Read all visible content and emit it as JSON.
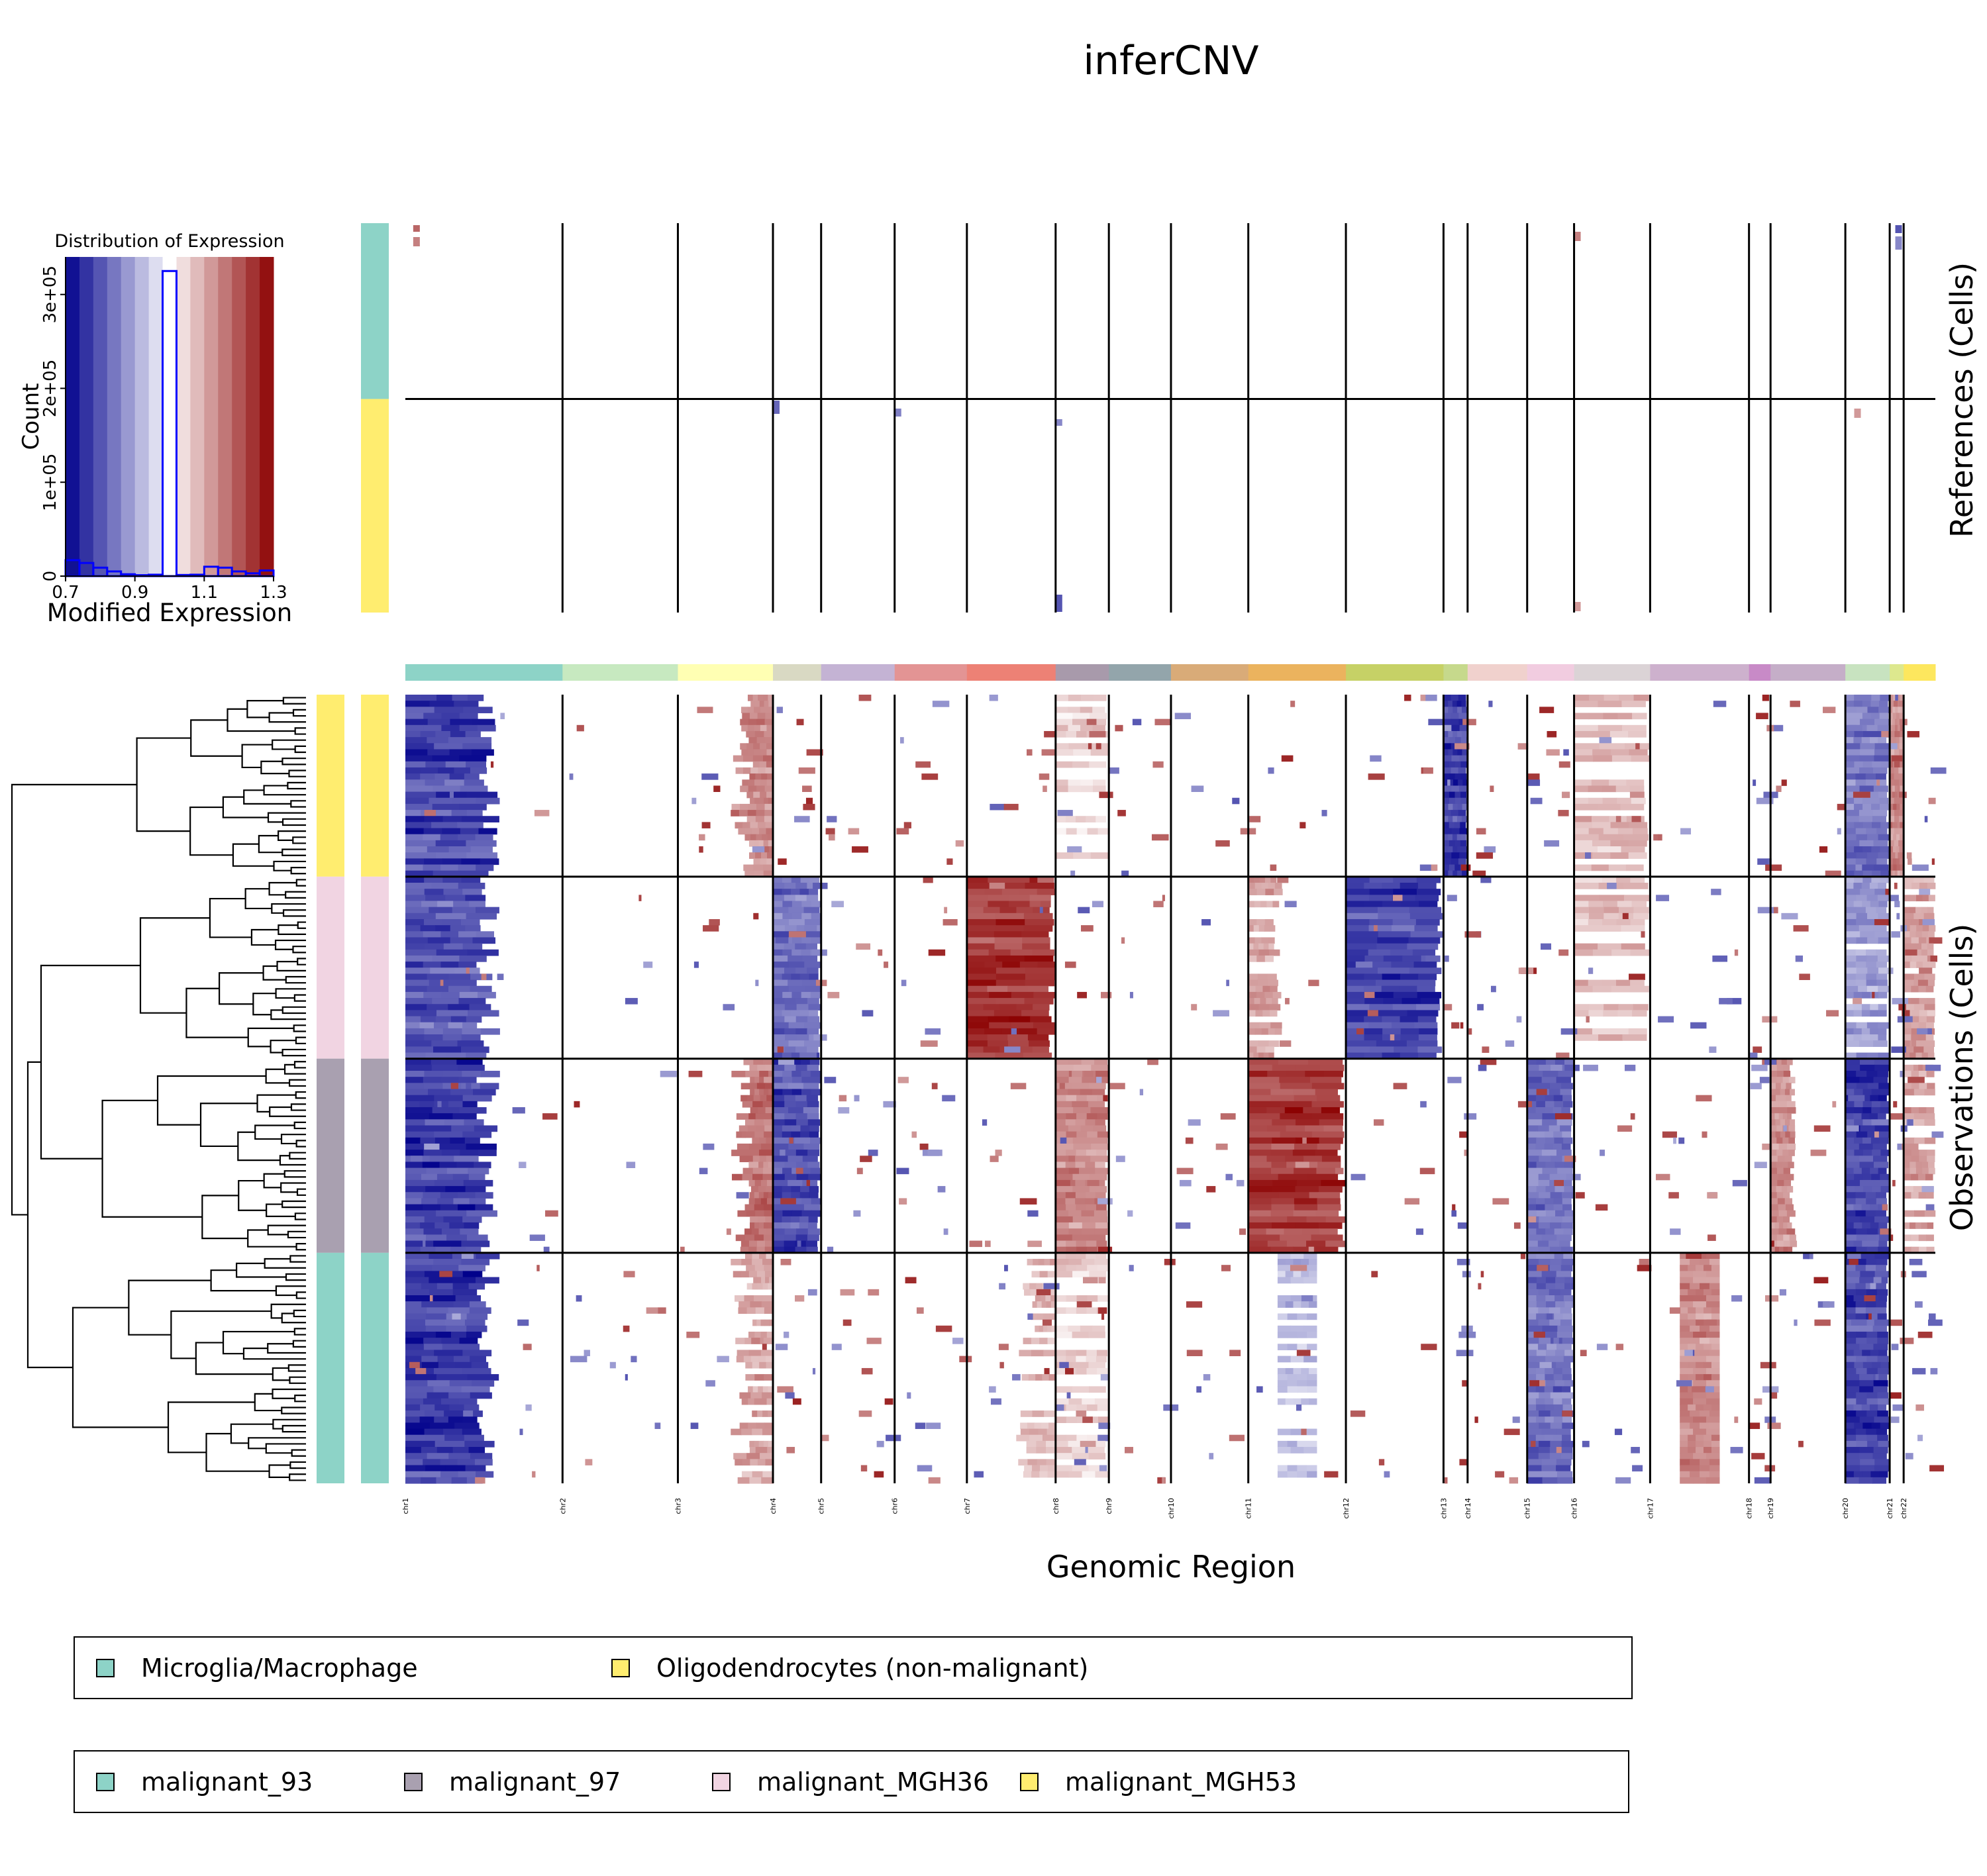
{
  "title": "inferCNV",
  "colors": {
    "dark_blue": "#00008b",
    "dark_red": "#8b0000",
    "line": "#000000",
    "hist_outline": "#0000ff"
  },
  "histogram": {
    "title": "Distribution of Expression",
    "xlabel": "Modified Expression",
    "ylabel": "Count",
    "xticks": [
      "0.7",
      "0.9",
      "1.1",
      "1.3"
    ],
    "yticks": [
      "0",
      "1e+05",
      "2e+05",
      "3e+05"
    ],
    "xlim": [
      0.7,
      1.3
    ],
    "ylim": [
      0,
      340000
    ],
    "color_steps": 15
  },
  "heatmap": {
    "xlabel": "Genomic Region",
    "references_label": "References (Cells)",
    "observations_label": "Observations (Cells)"
  },
  "chart_data": {
    "type": "heatmap",
    "title": "inferCNV",
    "histogram": {
      "type": "bar",
      "bin_edges": [
        0.7,
        0.74,
        0.78,
        0.82,
        0.86,
        0.9,
        0.94,
        0.98,
        1.02,
        1.06,
        1.1,
        1.14,
        1.18,
        1.22,
        1.26,
        1.3
      ],
      "counts": [
        17000,
        14000,
        9000,
        5000,
        2000,
        1000,
        1500,
        325000,
        1200,
        1500,
        10000,
        9000,
        5000,
        3000,
        6000
      ]
    },
    "chromosomes": [
      {
        "name": "chr1",
        "size": 124,
        "color": "#8dd3c7"
      },
      {
        "name": "chr2",
        "size": 91,
        "color": "#c7e9c0"
      },
      {
        "name": "chr3",
        "size": 75,
        "color": "#ffffb3"
      },
      {
        "name": "chr4",
        "size": 38,
        "color": "#d9d9c3"
      },
      {
        "name": "chr5",
        "size": 58,
        "color": "#c4b3d4"
      },
      {
        "name": "chr6",
        "size": 57,
        "color": "#e39494"
      },
      {
        "name": "chr7",
        "size": 70,
        "color": "#ed8175"
      },
      {
        "name": "chr8",
        "size": 42,
        "color": "#a89aab"
      },
      {
        "name": "chr9",
        "size": 49,
        "color": "#93a5ab"
      },
      {
        "name": "chr10",
        "size": 61,
        "color": "#d9ab78"
      },
      {
        "name": "chr11",
        "size": 77,
        "color": "#ebb35e"
      },
      {
        "name": "chr12",
        "size": 77,
        "color": "#c6d166"
      },
      {
        "name": "chr13",
        "size": 19,
        "color": "#c6d98c"
      },
      {
        "name": "chr14",
        "size": 47,
        "color": "#f0d1cd"
      },
      {
        "name": "chr15",
        "size": 37,
        "color": "#f1cce0"
      },
      {
        "name": "chr16",
        "size": 60,
        "color": "#dbd3d6"
      },
      {
        "name": "chr17",
        "size": 78,
        "color": "#cdb1cd"
      },
      {
        "name": "chr18",
        "size": 17,
        "color": "#c88ac7"
      },
      {
        "name": "chr19",
        "size": 59,
        "color": "#c5aec8"
      },
      {
        "name": "chr20",
        "size": 35,
        "color": "#c8e3c0"
      },
      {
        "name": "chr21",
        "size": 11,
        "color": "#dde88e"
      },
      {
        "name": "chr22",
        "size": 25,
        "color": "#fde75e"
      }
    ],
    "references": [
      {
        "group": "Microglia/Macrophage",
        "color": "#8dd3c7",
        "rows": 28
      },
      {
        "group": "Oligodendrocytes (non-malignant)",
        "color": "#ffed6f",
        "rows": 34
      }
    ],
    "observations": [
      {
        "group": "malignant_MGH53",
        "color": "#ffed6f",
        "rows": 30,
        "features": [
          {
            "chr": "chr1",
            "state": "loss",
            "level": 0.9
          },
          {
            "chr": "chr3",
            "state": "gain",
            "level": 0.6,
            "part": "end"
          },
          {
            "chr": "chr13",
            "state": "loss",
            "level": 0.9
          },
          {
            "chr": "chr20",
            "state": "loss",
            "level": 0.7
          },
          {
            "chr": "chr21",
            "state": "gain",
            "level": 0.6
          },
          {
            "chr": "chr16",
            "state": "gain",
            "level": 0.4
          },
          {
            "chr": "chr8",
            "state": "gain",
            "level": 0.3
          }
        ]
      },
      {
        "group": "malignant_MGH36",
        "color": "#f1d4e2",
        "rows": 30,
        "features": [
          {
            "chr": "chr1",
            "state": "loss",
            "level": 0.8
          },
          {
            "chr": "chr4",
            "state": "loss",
            "level": 0.7
          },
          {
            "chr": "chr7",
            "state": "gain",
            "level": 0.95
          },
          {
            "chr": "chr12",
            "state": "loss",
            "level": 0.9
          },
          {
            "chr": "chr11",
            "state": "gain",
            "level": 0.5,
            "part": "start"
          },
          {
            "chr": "chr20",
            "state": "loss",
            "level": 0.5
          },
          {
            "chr": "chr22",
            "state": "gain",
            "level": 0.5
          },
          {
            "chr": "chr16",
            "state": "gain",
            "level": 0.4
          }
        ]
      },
      {
        "group": "malignant_97",
        "color": "#a9a0b0",
        "rows": 32,
        "features": [
          {
            "chr": "chr1",
            "state": "loss",
            "level": 0.95
          },
          {
            "chr": "chr3",
            "state": "gain",
            "level": 0.7,
            "part": "end"
          },
          {
            "chr": "chr4",
            "state": "loss",
            "level": 0.85
          },
          {
            "chr": "chr8",
            "state": "gain",
            "level": 0.6
          },
          {
            "chr": "chr11",
            "state": "gain",
            "level": 0.95
          },
          {
            "chr": "chr15",
            "state": "loss",
            "level": 0.7
          },
          {
            "chr": "chr19",
            "state": "gain",
            "level": 0.6,
            "part": "start"
          },
          {
            "chr": "chr20",
            "state": "loss",
            "level": 0.9
          },
          {
            "chr": "chr22",
            "state": "gain",
            "level": 0.5
          }
        ]
      },
      {
        "group": "malignant_93",
        "color": "#8dd3c7",
        "rows": 38,
        "features": [
          {
            "chr": "chr1",
            "state": "loss",
            "level": 0.95
          },
          {
            "chr": "chr3",
            "state": "gain",
            "level": 0.5,
            "part": "end"
          },
          {
            "chr": "chr15",
            "state": "loss",
            "level": 0.7
          },
          {
            "chr": "chr17",
            "state": "gain",
            "level": 0.6,
            "part": "mid"
          },
          {
            "chr": "chr20",
            "state": "loss",
            "level": 0.9
          },
          {
            "chr": "chr11",
            "state": "loss",
            "level": 0.4,
            "part": "mid"
          },
          {
            "chr": "chr7",
            "state": "gain",
            "level": 0.4,
            "part": "end"
          },
          {
            "chr": "chr8",
            "state": "gain",
            "level": 0.3
          }
        ]
      }
    ]
  },
  "legend_references": [
    {
      "label": "Microglia/Macrophage",
      "color": "#8dd3c7"
    },
    {
      "label": "Oligodendrocytes (non-malignant)",
      "color": "#ffed6f"
    }
  ],
  "legend_observations": [
    {
      "label": "malignant_93",
      "color": "#8dd3c7"
    },
    {
      "label": "malignant_97",
      "color": "#a9a0b0"
    },
    {
      "label": "malignant_MGH36",
      "color": "#f1d4e2"
    },
    {
      "label": "malignant_MGH53",
      "color": "#ffed6f"
    }
  ]
}
